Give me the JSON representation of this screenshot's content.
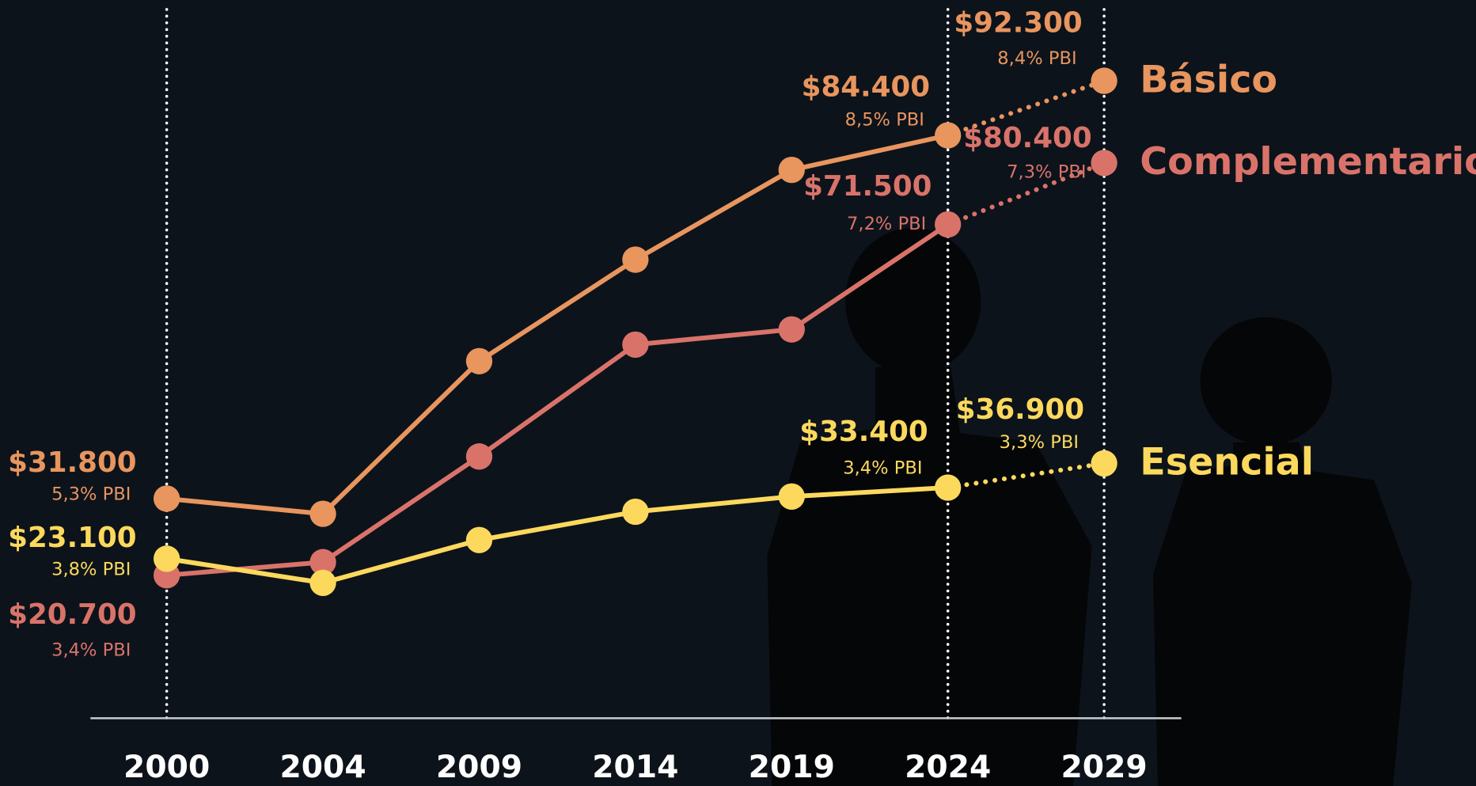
{
  "chart_data": {
    "type": "line",
    "categories": [
      "2000",
      "2004",
      "2009",
      "2014",
      "2019",
      "2024",
      "2029"
    ],
    "ylim": [
      0,
      104000
    ],
    "last_segment_style": "dotted",
    "series": [
      {
        "name": "Básico",
        "color": "#e8955e",
        "values": [
          31800,
          29600,
          51700,
          66400,
          79400,
          84400,
          92300
        ],
        "value_labels": [
          "$31.800",
          null,
          null,
          null,
          null,
          "$84.400",
          "$92.300"
        ],
        "pbi_labels": [
          "5,3% PBI",
          null,
          null,
          null,
          null,
          "8,5% PBI",
          "8,4% PBI"
        ]
      },
      {
        "name": "Complementario",
        "color": "#d9736a",
        "values": [
          20700,
          22600,
          37900,
          54100,
          56300,
          71500,
          80400
        ],
        "value_labels": [
          "$20.700",
          null,
          null,
          null,
          null,
          "$71.500",
          "$80.400"
        ],
        "pbi_labels": [
          "3,4% PBI",
          null,
          null,
          null,
          null,
          "7,2% PBI",
          "7,3% PBI"
        ]
      },
      {
        "name": "Esencial",
        "color": "#fcd95d",
        "values": [
          23100,
          19600,
          25800,
          29900,
          32100,
          33400,
          36900
        ],
        "value_labels": [
          "$23.100",
          null,
          null,
          null,
          null,
          "$33.400",
          "$36.900"
        ],
        "pbi_labels": [
          "3,8% PBI",
          null,
          null,
          null,
          null,
          "3,4% PBI",
          "3,3% PBI"
        ]
      }
    ]
  }
}
